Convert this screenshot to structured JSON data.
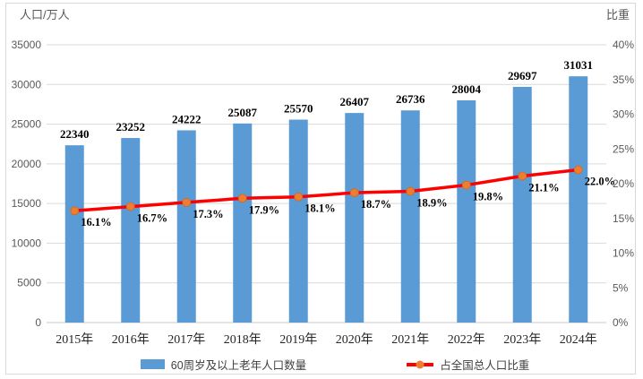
{
  "chart_data": {
    "type": "bar",
    "combo": "bar+line",
    "categories": [
      "2015年",
      "2016年",
      "2017年",
      "2018年",
      "2019年",
      "2020年",
      "2021年",
      "2022年",
      "2023年",
      "2024年"
    ],
    "series": [
      {
        "name": "60周岁及以上老年人口数量",
        "type": "bar",
        "axis": "left",
        "color": "#5B9BD5",
        "values": [
          22340,
          23252,
          24222,
          25087,
          25570,
          26407,
          26736,
          28004,
          29697,
          31031
        ],
        "labels": [
          "22340",
          "23252",
          "24222",
          "25087",
          "25570",
          "26407",
          "26736",
          "28004",
          "29697",
          "31031"
        ]
      },
      {
        "name": "占全国总人口比重",
        "type": "line",
        "axis": "right",
        "color": "#FE0000",
        "marker_color": "#ED7D31",
        "values": [
          16.1,
          16.7,
          17.3,
          17.9,
          18.1,
          18.7,
          18.9,
          19.8,
          21.1,
          22.0
        ],
        "labels": [
          "16.1%",
          "16.7%",
          "17.3%",
          "17.9%",
          "18.1%",
          "18.7%",
          "18.9%",
          "19.8%",
          "21.1%",
          "22.0%"
        ]
      }
    ],
    "left_axis": {
      "title": "人口/万人",
      "min": 0,
      "max": 35000,
      "step": 5000,
      "ticks": [
        "35000",
        "30000",
        "25000",
        "20000",
        "15000",
        "10000",
        "5000",
        "0"
      ]
    },
    "right_axis": {
      "title": "比重",
      "min": 0,
      "max": 40,
      "step": 5,
      "ticks": [
        "40%",
        "35%",
        "30%",
        "25%",
        "20%",
        "15%",
        "10%",
        "5%",
        "0%"
      ]
    },
    "grid": true,
    "legend_position": "bottom"
  },
  "colors": {
    "bar": "#5B9BD5",
    "line": "#FE0000",
    "marker": "#ED7D31",
    "marker_edge": "#D2691E",
    "grid": "#D9D9D9",
    "baseline": "#C9C9C9",
    "axis_text": "#595959",
    "category_text": "#262626",
    "data_label": "#000000",
    "frame_border": "#D9D9D9",
    "background": "#FFFFFF"
  }
}
